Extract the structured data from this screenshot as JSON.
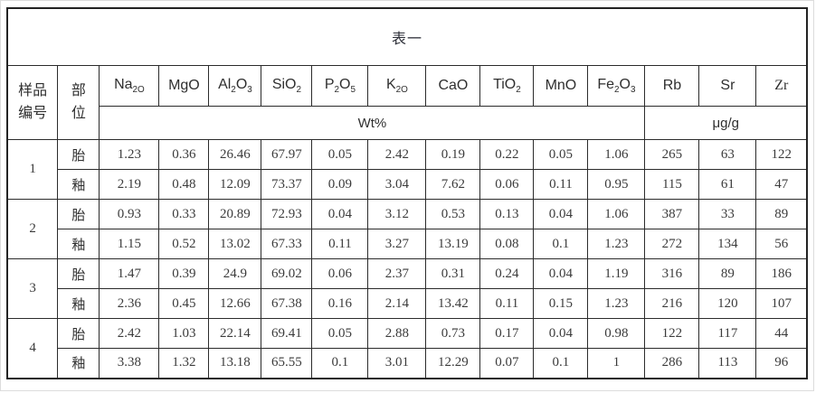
{
  "title": "表一",
  "header": {
    "sample_col": {
      "line1": "样品",
      "line2": "编号"
    },
    "part_col": {
      "line1": "部",
      "line2": "位"
    },
    "elements": [
      {
        "key": "na2o",
        "parts": [
          {
            "t": "Na"
          },
          {
            "t": "2O",
            "sub": true
          }
        ]
      },
      {
        "key": "mgo",
        "parts": [
          {
            "t": "MgO"
          }
        ]
      },
      {
        "key": "al2o3",
        "parts": [
          {
            "t": "Al"
          },
          {
            "t": "2",
            "sub": true
          },
          {
            "t": "O"
          },
          {
            "t": "3",
            "sub": true
          }
        ]
      },
      {
        "key": "sio2",
        "parts": [
          {
            "t": "SiO"
          },
          {
            "t": "2",
            "sub": true
          }
        ]
      },
      {
        "key": "p2o5",
        "parts": [
          {
            "t": "P"
          },
          {
            "t": "2",
            "sub": true
          },
          {
            "t": "O"
          },
          {
            "t": "5",
            "sub": true
          }
        ]
      },
      {
        "key": "k2o",
        "parts": [
          {
            "t": "K"
          },
          {
            "t": "2O",
            "sub": true
          }
        ]
      },
      {
        "key": "cao",
        "parts": [
          {
            "t": "CaO"
          }
        ]
      },
      {
        "key": "tio2",
        "parts": [
          {
            "t": "TiO"
          },
          {
            "t": "2",
            "sub": true
          }
        ]
      },
      {
        "key": "mno",
        "parts": [
          {
            "t": "MnO"
          }
        ]
      },
      {
        "key": "fe2o3",
        "parts": [
          {
            "t": "Fe"
          },
          {
            "t": "2",
            "sub": true
          },
          {
            "t": "O"
          },
          {
            "t": "3",
            "sub": true
          }
        ]
      },
      {
        "key": "rb",
        "parts": [
          {
            "t": "Rb"
          }
        ]
      },
      {
        "key": "sr",
        "parts": [
          {
            "t": "Sr"
          }
        ]
      },
      {
        "key": "zr",
        "parts": [
          {
            "t": "Zr"
          }
        ],
        "serif": true
      }
    ],
    "units": {
      "wt_label": "Wt%",
      "wt_span": 10,
      "trace_label": "μg/g",
      "trace_span": 3
    }
  },
  "part_labels": {
    "body": "胎",
    "glaze": "釉"
  },
  "samples": [
    {
      "id": "1",
      "rows": [
        {
          "part": "胎",
          "values": [
            "1.23",
            "0.36",
            "26.46",
            "67.97",
            "0.05",
            "2.42",
            "0.19",
            "0.22",
            "0.05",
            "1.06",
            "265",
            "63",
            "122"
          ]
        },
        {
          "part": "釉",
          "values": [
            "2.19",
            "0.48",
            "12.09",
            "73.37",
            "0.09",
            "3.04",
            "7.62",
            "0.06",
            "0.11",
            "0.95",
            "115",
            "61",
            "47"
          ]
        }
      ]
    },
    {
      "id": "2",
      "rows": [
        {
          "part": "胎",
          "values": [
            "0.93",
            "0.33",
            "20.89",
            "72.93",
            "0.04",
            "3.12",
            "0.53",
            "0.13",
            "0.04",
            "1.06",
            "387",
            "33",
            "89"
          ]
        },
        {
          "part": "釉",
          "values": [
            "1.15",
            "0.52",
            "13.02",
            "67.33",
            "0.11",
            "3.27",
            "13.19",
            "0.08",
            "0.1",
            "1.23",
            "272",
            "134",
            "56"
          ]
        }
      ]
    },
    {
      "id": "3",
      "rows": [
        {
          "part": "胎",
          "values": [
            "1.47",
            "0.39",
            "24.9",
            "69.02",
            "0.06",
            "2.37",
            "0.31",
            "0.24",
            "0.04",
            "1.19",
            "316",
            "89",
            "186"
          ]
        },
        {
          "part": "釉",
          "values": [
            "2.36",
            "0.45",
            "12.66",
            "67.38",
            "0.16",
            "2.14",
            "13.42",
            "0.11",
            "0.15",
            "1.23",
            "216",
            "120",
            "107"
          ]
        }
      ]
    },
    {
      "id": "4",
      "rows": [
        {
          "part": "胎",
          "values": [
            "2.42",
            "1.03",
            "22.14",
            "69.41",
            "0.05",
            "2.88",
            "0.73",
            "0.17",
            "0.04",
            "0.98",
            "122",
            "117",
            "44"
          ]
        },
        {
          "part": "釉",
          "values": [
            "3.38",
            "1.32",
            "13.18",
            "65.55",
            "0.1",
            "3.01",
            "12.29",
            "0.07",
            "0.1",
            "1",
            "286",
            "113",
            "96"
          ]
        }
      ]
    }
  ]
}
